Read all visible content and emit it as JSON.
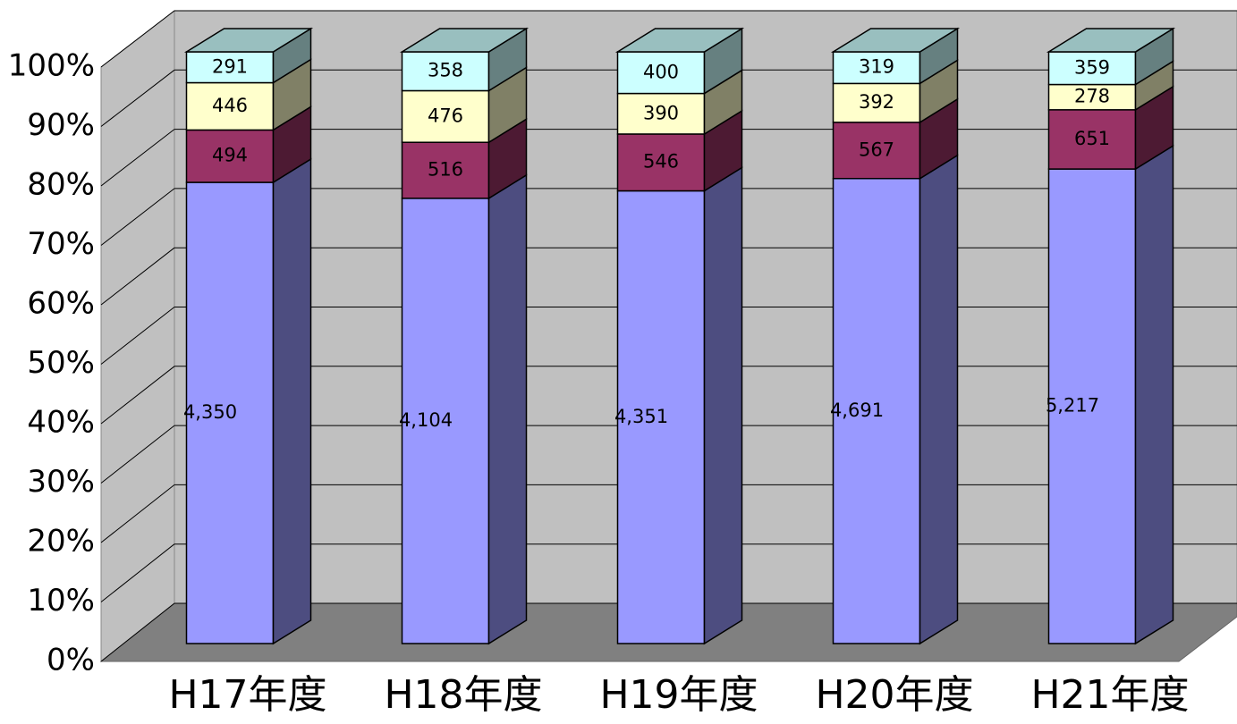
{
  "chart_data": {
    "type": "bar",
    "stacked": "percent",
    "categories": [
      "H17年度",
      "H18年度",
      "H19年度",
      "H20年度",
      "H21年度"
    ],
    "series": [
      {
        "color": "#9999ff",
        "values": [
          4350,
          4104,
          4351,
          4691,
          5217
        ],
        "value_labels": [
          "4,350",
          "4,104",
          "4,351",
          "4,691",
          "5,217"
        ]
      },
      {
        "color": "#993366",
        "values": [
          494,
          516,
          546,
          567,
          651
        ]
      },
      {
        "color": "#ffffcc",
        "values": [
          446,
          476,
          390,
          392,
          278
        ]
      },
      {
        "color": "#ccffff",
        "values": [
          291,
          358,
          400,
          319,
          359
        ]
      }
    ],
    "ylim": [
      0,
      100
    ],
    "yticks": [
      {
        "value": 0,
        "label": "0%"
      },
      {
        "value": 10,
        "label": "10%"
      },
      {
        "value": 20,
        "label": "20%"
      },
      {
        "value": 30,
        "label": "30%"
      },
      {
        "value": 40,
        "label": "40%"
      },
      {
        "value": 50,
        "label": "50%"
      },
      {
        "value": 60,
        "label": "60%"
      },
      {
        "value": 70,
        "label": "70%"
      },
      {
        "value": 80,
        "label": "80%"
      },
      {
        "value": 90,
        "label": "90%"
      },
      {
        "value": 100,
        "label": "100%"
      }
    ],
    "grid": true
  }
}
